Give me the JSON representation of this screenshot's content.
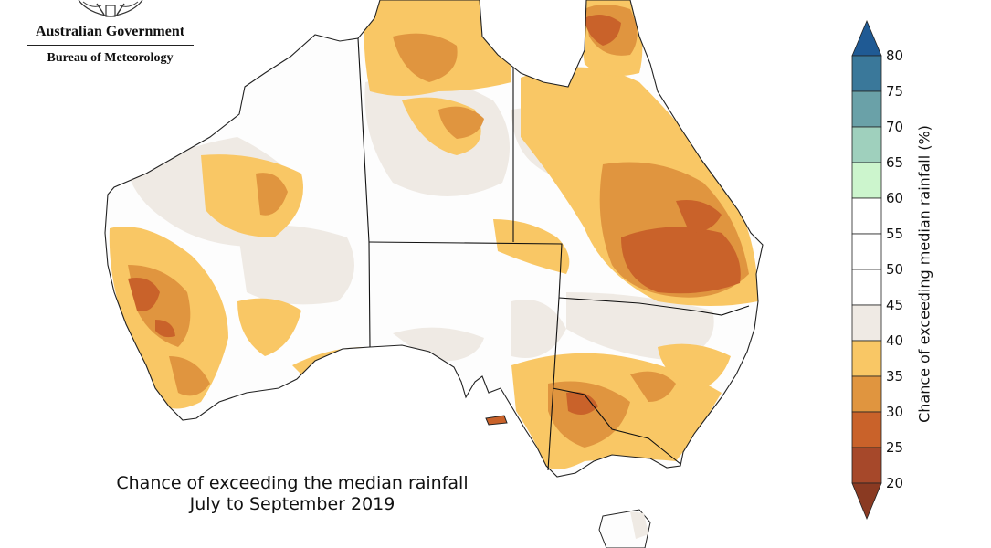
{
  "header": {
    "government": "Australian Government",
    "bureau": "Bureau of Meteorology"
  },
  "title": {
    "line1": "Chance of exceeding the median rainfall",
    "line2": "July to September 2019"
  },
  "legend": {
    "title": "Chance of exceeding median rainfall (%)",
    "ticks": [
      "80",
      "75",
      "70",
      "65",
      "60",
      "55",
      "50",
      "45",
      "40",
      "35",
      "30",
      "25",
      "20"
    ],
    "colors": {
      "above_80": "#1f5a94",
      "75_80": "#3a789a",
      "70_75": "#6aa1a8",
      "65_70": "#9fd0bd",
      "60_65": "#ccf5cd",
      "55_60": "#ffffff",
      "50_55": "#ffffff",
      "45_50": "#ffffff",
      "40_45": "#efeae4",
      "35_40": "#f9c765",
      "30_35": "#e0953f",
      "25_30": "#c9622a",
      "20_25": "#a6482a",
      "below_20": "#8a3a22"
    }
  }
}
